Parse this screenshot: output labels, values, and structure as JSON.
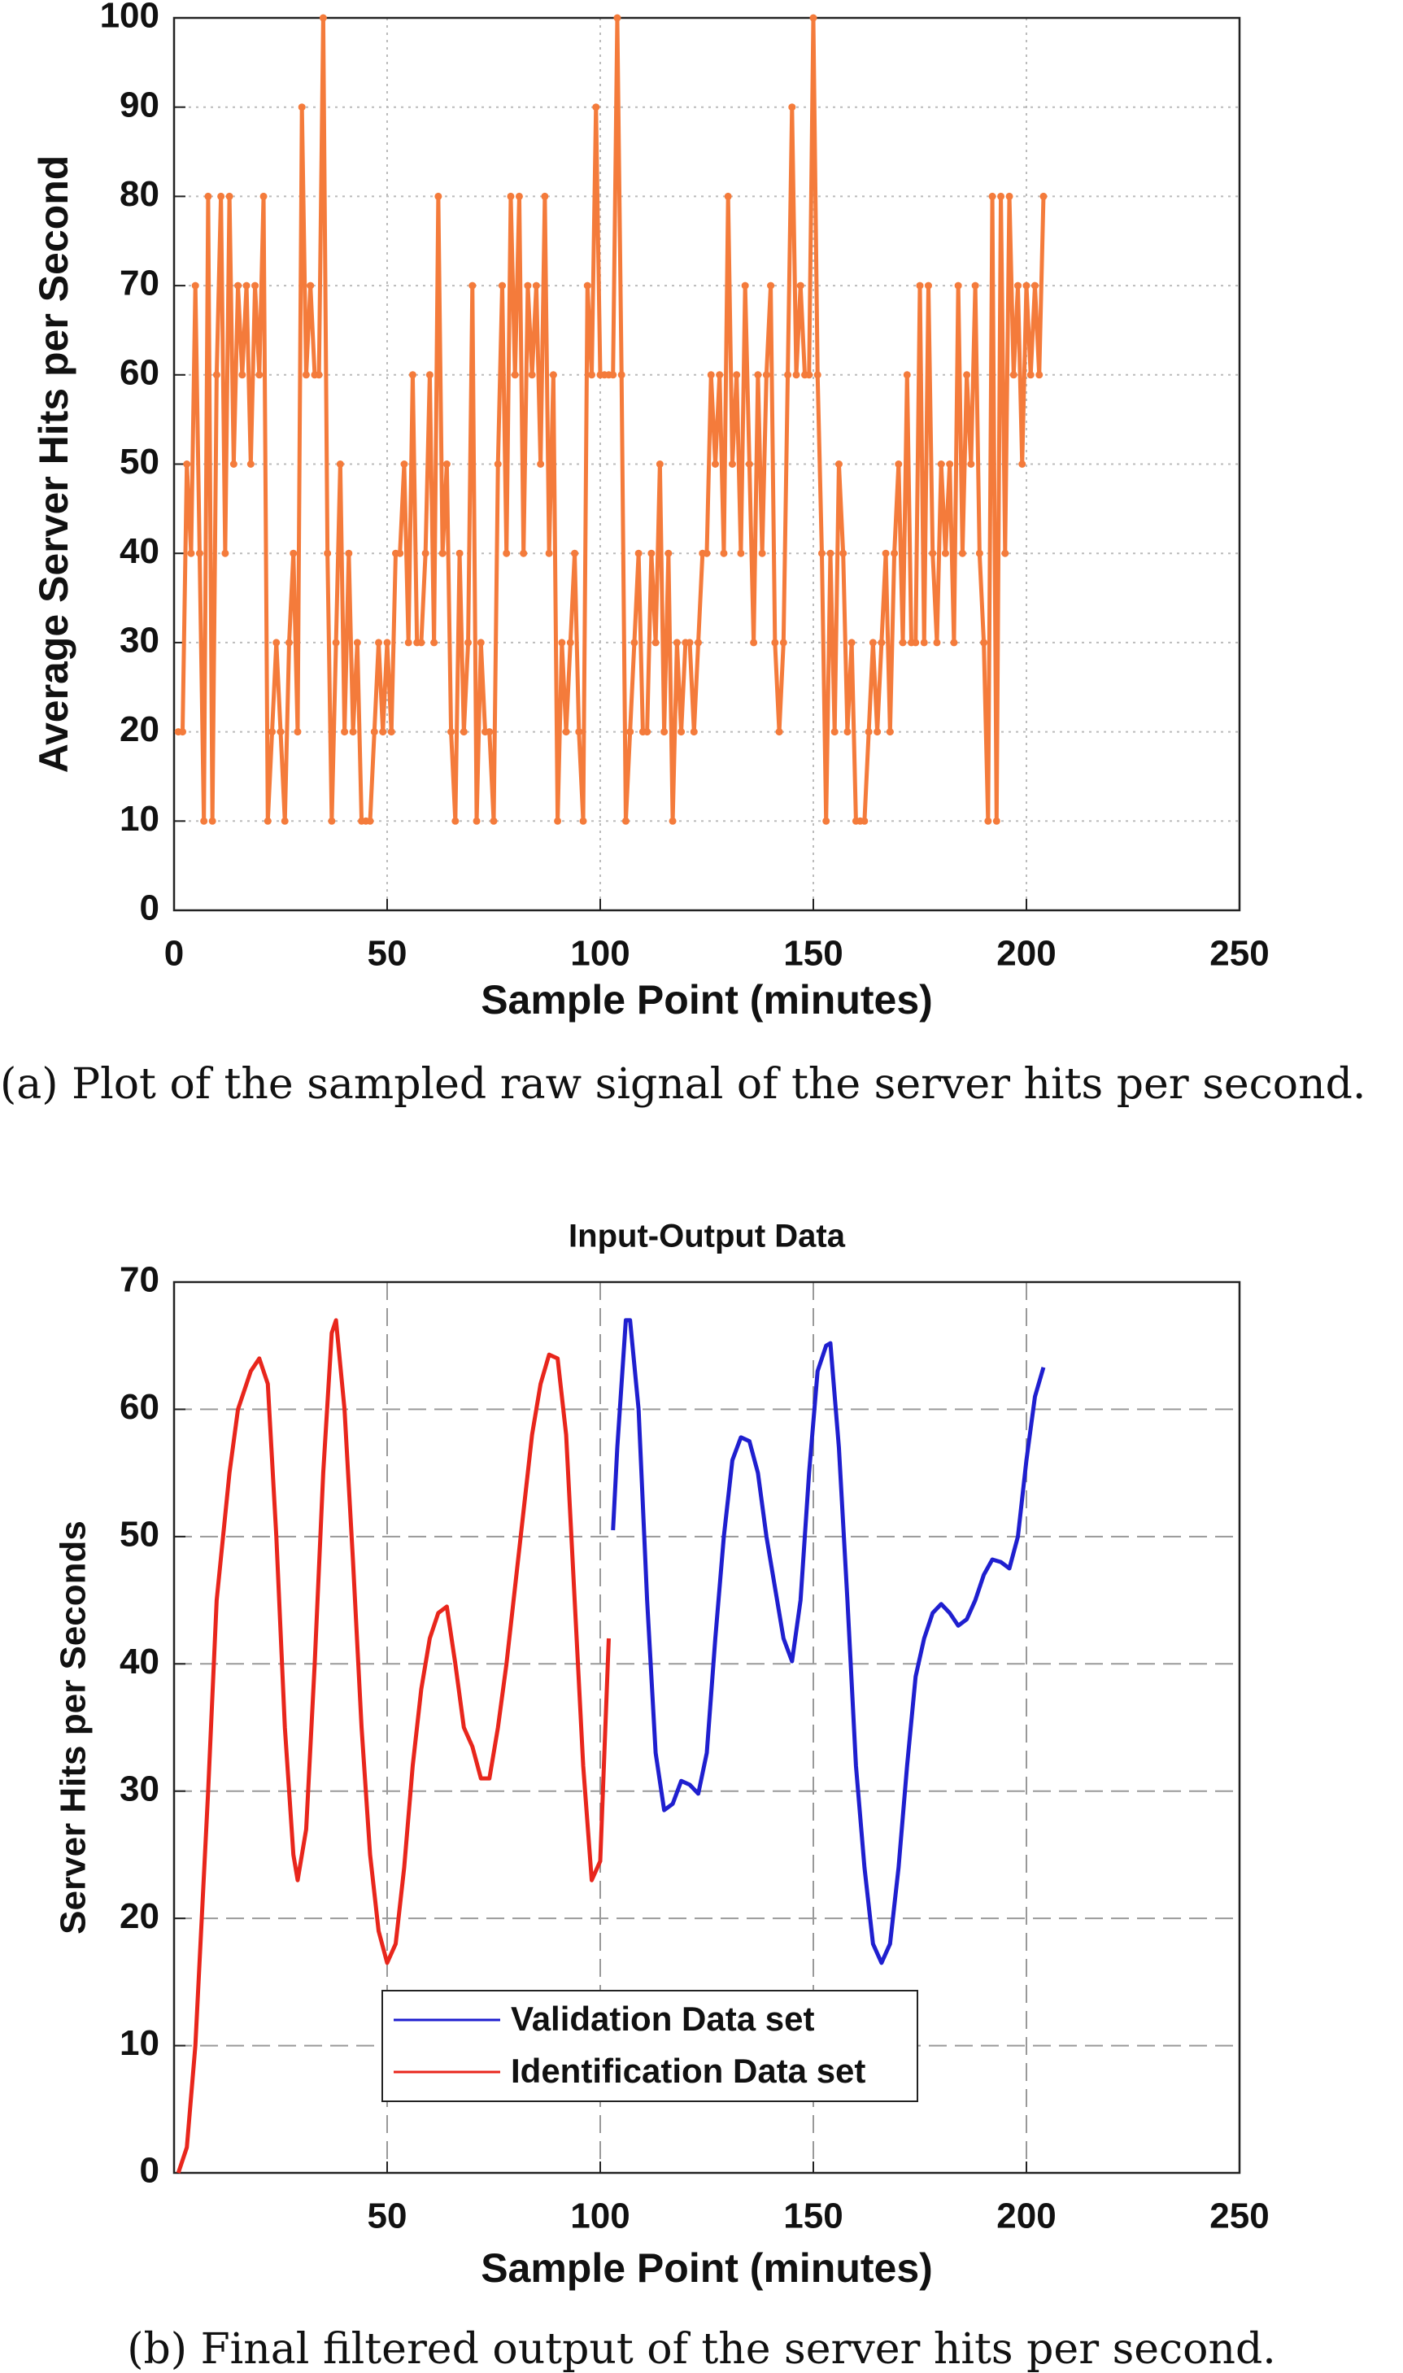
{
  "chart_data": [
    {
      "type": "line",
      "x_label": "Sample Point (minutes)",
      "y_label": "Average Server Hits per Second",
      "caption": "(a) Plot of the sampled raw signal of the server hits per second.",
      "color": "#f47b3b",
      "markers": true,
      "grid": true,
      "xlim": [
        0,
        250
      ],
      "xticks": [
        0,
        50,
        100,
        150,
        200,
        250
      ],
      "ylim": [
        0,
        100
      ],
      "yticks": [
        0,
        10,
        20,
        30,
        40,
        50,
        60,
        70,
        80,
        90,
        100
      ],
      "x": [
        1,
        2,
        3,
        4,
        5,
        6,
        7,
        8,
        9,
        10,
        11,
        12,
        13,
        14,
        15,
        16,
        17,
        18,
        19,
        20,
        21,
        22,
        23,
        24,
        25,
        26,
        27,
        28,
        29,
        30,
        31,
        32,
        33,
        34,
        35,
        36,
        37,
        38,
        39,
        40,
        41,
        42,
        43,
        44,
        45,
        46,
        47,
        48,
        49,
        50,
        51,
        52,
        53,
        54,
        55,
        56,
        57,
        58,
        59,
        60,
        61,
        62,
        63,
        64,
        65,
        66,
        67,
        68,
        69,
        70,
        71,
        72,
        73,
        74,
        75,
        76,
        77,
        78,
        79,
        80,
        81,
        82,
        83,
        84,
        85,
        86,
        87,
        88,
        89,
        90,
        91,
        92,
        93,
        94,
        95,
        96,
        97,
        98,
        99,
        100,
        101,
        102,
        103,
        104,
        105,
        106,
        107,
        108,
        109,
        110,
        111,
        112,
        113,
        114,
        115,
        116,
        117,
        118,
        119,
        120,
        121,
        122,
        123,
        124,
        125,
        126,
        127,
        128,
        129,
        130,
        131,
        132,
        133,
        134,
        135,
        136,
        137,
        138,
        139,
        140,
        141,
        142,
        143,
        144,
        145,
        146,
        147,
        148,
        149,
        150,
        151,
        152,
        153,
        154,
        155,
        156,
        157,
        158,
        159,
        160,
        161,
        162,
        163,
        164,
        165,
        166,
        167,
        168,
        169,
        170,
        171,
        172,
        173,
        174,
        175,
        176,
        177,
        178,
        179,
        180,
        181,
        182,
        183,
        184,
        185,
        186,
        187,
        188,
        189,
        190,
        191,
        192,
        193,
        194,
        195,
        196,
        197,
        198,
        199,
        200,
        201,
        202,
        203,
        204
      ],
      "values": [
        20,
        20,
        50,
        40,
        70,
        40,
        10,
        80,
        10,
        60,
        80,
        40,
        80,
        50,
        70,
        60,
        70,
        50,
        70,
        60,
        80,
        10,
        20,
        30,
        20,
        10,
        30,
        40,
        20,
        90,
        60,
        70,
        60,
        60,
        100,
        40,
        10,
        30,
        50,
        20,
        40,
        20,
        30,
        10,
        10,
        10,
        20,
        30,
        20,
        30,
        20,
        40,
        40,
        50,
        30,
        60,
        30,
        30,
        40,
        60,
        30,
        80,
        40,
        50,
        20,
        10,
        40,
        20,
        30,
        70,
        10,
        30,
        20,
        20,
        10,
        50,
        70,
        40,
        80,
        60,
        80,
        40,
        70,
        60,
        70,
        50,
        80,
        40,
        60,
        10,
        30,
        20,
        30,
        40,
        20,
        10,
        70,
        60,
        90,
        60,
        60,
        60,
        60,
        100,
        60,
        10,
        20,
        30,
        40,
        20,
        20,
        40,
        30,
        50,
        20,
        40,
        10,
        30,
        20,
        30,
        30,
        20,
        30,
        40,
        40,
        60,
        50,
        60,
        40,
        80,
        50,
        60,
        40,
        70,
        50,
        30,
        60,
        40,
        60,
        70,
        30,
        20,
        30,
        60,
        90,
        60,
        70,
        60,
        60,
        100,
        60,
        40,
        10,
        40,
        20,
        50,
        40,
        20,
        30,
        10,
        10,
        10,
        20,
        30,
        20,
        30,
        40,
        20,
        40,
        50,
        30,
        60,
        30,
        30,
        70,
        30,
        70,
        40,
        30,
        50,
        40,
        50,
        30,
        70,
        40,
        60,
        50,
        70,
        40,
        30,
        10,
        80,
        10,
        80,
        40,
        80,
        60,
        70,
        50,
        70,
        60,
        70,
        60,
        80
      ]
    },
    {
      "type": "line",
      "title": "Input-Output Data",
      "x_label": "Sample Point (minutes)",
      "y_label": "Server Hits per Seconds",
      "caption": "(b) Final filtered output of the server hits per second.",
      "grid": true,
      "legend": "bottom-center",
      "xlim": [
        0,
        250
      ],
      "xticks": [
        50,
        100,
        150,
        200,
        250
      ],
      "ylim": [
        0,
        70
      ],
      "yticks": [
        0,
        10,
        20,
        30,
        40,
        50,
        60,
        70
      ],
      "series": [
        {
          "name": "Validation Data set",
          "color": "#1f1fcf",
          "x": [
            103,
            104,
            106,
            107,
            109,
            111,
            113,
            115,
            117,
            119,
            121,
            123,
            125,
            127,
            129,
            131,
            133,
            135,
            137,
            139,
            141,
            143,
            145,
            147,
            149,
            151,
            153,
            154,
            156,
            158,
            160,
            162,
            164,
            166,
            168,
            170,
            172,
            174,
            176,
            178,
            180,
            182,
            184,
            186,
            188,
            190,
            192,
            194,
            196,
            198,
            200,
            202,
            204
          ],
          "values": [
            50.5,
            57,
            67,
            67,
            60,
            45,
            33,
            28.5,
            29,
            30.8,
            30.5,
            29.8,
            33,
            42,
            50,
            56,
            57.8,
            57.5,
            55,
            50,
            46,
            42,
            40.2,
            45,
            55,
            63,
            65,
            65.2,
            57,
            45,
            32,
            24,
            18,
            16.5,
            18,
            24,
            32,
            39,
            42,
            44,
            44.7,
            44,
            43,
            43.5,
            45,
            47,
            48.2,
            48,
            47.5,
            50,
            56,
            61,
            63.3
          ]
        },
        {
          "name": "Identification Data set",
          "color": "#e8261c",
          "x": [
            1,
            3,
            5,
            8,
            10,
            13,
            15,
            18,
            20,
            22,
            24,
            26,
            28,
            29,
            31,
            33,
            35,
            37,
            38,
            40,
            42,
            44,
            46,
            48,
            50,
            52,
            54,
            56,
            58,
            60,
            62,
            64,
            66,
            68,
            70,
            72,
            74,
            76,
            78,
            80,
            82,
            84,
            86,
            88,
            90,
            92,
            94,
            96,
            98,
            100,
            102
          ],
          "values": [
            0,
            2,
            10,
            30,
            45,
            55,
            60,
            63,
            64,
            62,
            50,
            35,
            25,
            23,
            27,
            40,
            55,
            66,
            67,
            60,
            48,
            35,
            25,
            19,
            16.5,
            18,
            24,
            32,
            38,
            42,
            44,
            44.5,
            40,
            35,
            33.5,
            31,
            31,
            35,
            40,
            46,
            52,
            58,
            62,
            64.3,
            64,
            58,
            45,
            32,
            23,
            24.5,
            42
          ]
        }
      ]
    }
  ]
}
